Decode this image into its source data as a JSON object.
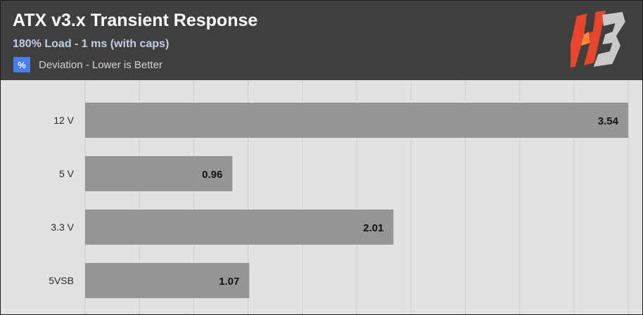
{
  "header": {
    "title": "ATX v3.x Transient Response",
    "subtitle": "180% Load - 1 ms (with caps)",
    "legend_symbol": "%",
    "legend_label": "Deviation - Lower is Better",
    "logo_text": "HB"
  },
  "colors": {
    "header_bg": "#3f3f3f",
    "plot_bg": "#e2e2e2",
    "bar": "#959595",
    "legend_swatch": "#4a7ef0"
  },
  "chart_data": {
    "type": "bar",
    "orientation": "horizontal",
    "title": "ATX v3.x Transient Response",
    "subtitle": "180% Load - 1 ms (with caps)",
    "categories": [
      "12 V",
      "5 V",
      "3.3 V",
      "5VSB"
    ],
    "series": [
      {
        "name": "Deviation - Lower is Better",
        "values": [
          3.54,
          0.96,
          2.01,
          1.07
        ]
      }
    ],
    "xlim": [
      0,
      3.54
    ],
    "grid": "vertical",
    "legend": "top-left"
  }
}
